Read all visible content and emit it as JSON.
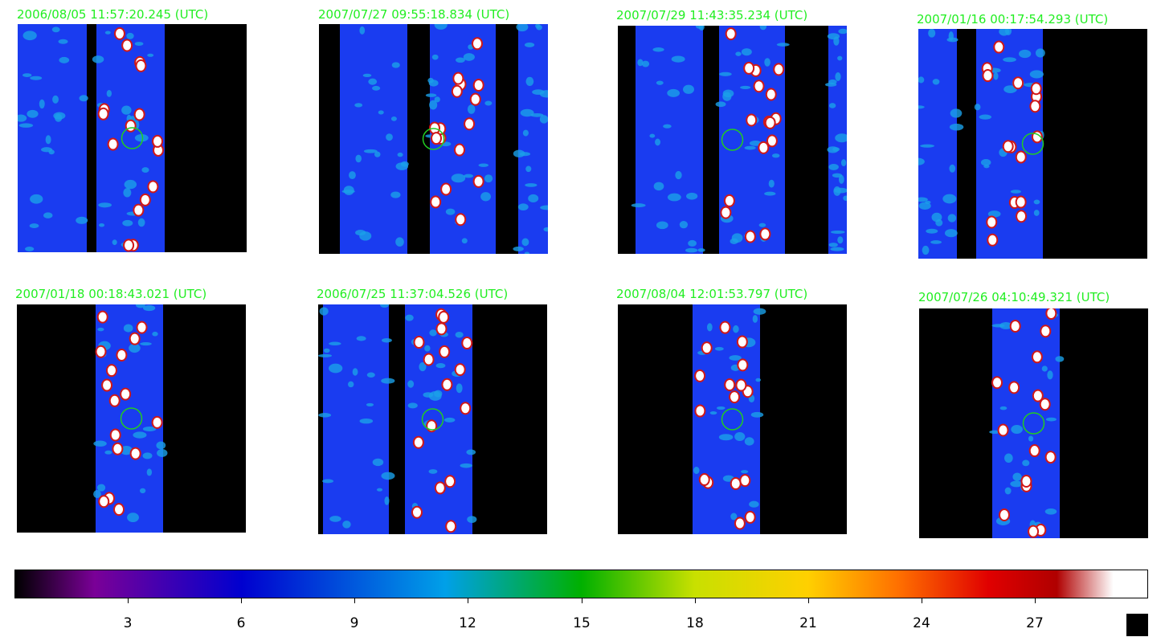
{
  "panels": [
    {
      "timestamp": "2006/08/05 11:57:20.245 (UTC)"
    },
    {
      "timestamp": "2007/07/27 09:55:18.834 (UTC)"
    },
    {
      "timestamp": "2007/07/29 11:43:35.234 (UTC)"
    },
    {
      "timestamp": "2007/01/16 00:17:54.293 (UTC)"
    },
    {
      "timestamp": "2007/01/18 00:18:43.021 (UTC)"
    },
    {
      "timestamp": "2006/07/25 11:37:04.526 (UTC)"
    },
    {
      "timestamp": "2007/08/04 12:01:53.797 (UTC)"
    },
    {
      "timestamp": "2007/07/26 04:10:49.321 (UTC)"
    }
  ],
  "colorbar": {
    "ticks": [
      "3",
      "6",
      "9",
      "12",
      "15",
      "18",
      "21",
      "24",
      "27"
    ],
    "tick_values": [
      3,
      6,
      9,
      12,
      15,
      18,
      21,
      24,
      27
    ],
    "range": [
      0,
      30
    ],
    "colors": [
      "#000000",
      "#7a0097",
      "#0000cf",
      "#00a0e8",
      "#00b000",
      "#c8e000",
      "#ffd000",
      "#ff7000",
      "#e00000",
      "#b00000",
      "#ffffff"
    ]
  },
  "colors": {
    "timestamp_text": "#22ee22",
    "strip_fill": "#1a3cf0",
    "nodata": "#000000",
    "marker_circle": "#22cc22"
  }
}
